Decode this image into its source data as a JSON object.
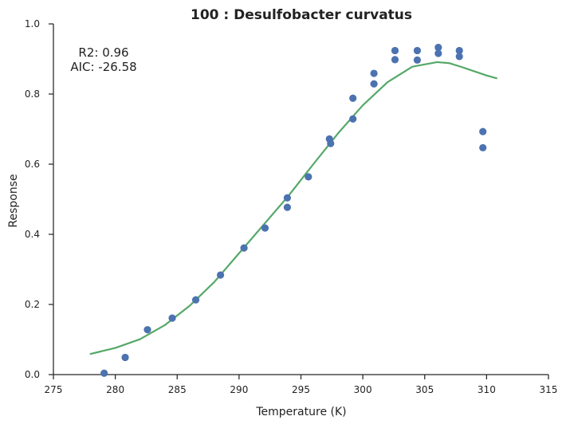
{
  "chart_data": {
    "type": "scatter",
    "title": "100 : Desulfobacter curvatus",
    "xlabel": "Temperature (K)",
    "ylabel": "Response",
    "xlim": [
      275,
      315
    ],
    "ylim": [
      0.0,
      1.0
    ],
    "x_ticks": [
      "275",
      "280",
      "285",
      "290",
      "295",
      "300",
      "305",
      "310",
      "315"
    ],
    "y_ticks": [
      "0.0",
      "0.2",
      "0.4",
      "0.6",
      "0.8",
      "1.0"
    ],
    "grid": false,
    "annotations": {
      "r2": "R2: 0.96",
      "aic": "AIC: -26.58"
    },
    "series": [
      {
        "kind": "points",
        "color": "#4c72b0",
        "points": [
          {
            "x": 279.1,
            "y": 0.004
          },
          {
            "x": 280.8,
            "y": 0.049
          },
          {
            "x": 282.6,
            "y": 0.128
          },
          {
            "x": 284.6,
            "y": 0.161
          },
          {
            "x": 286.5,
            "y": 0.213
          },
          {
            "x": 288.5,
            "y": 0.284
          },
          {
            "x": 290.4,
            "y": 0.361
          },
          {
            "x": 292.1,
            "y": 0.418
          },
          {
            "x": 293.9,
            "y": 0.477
          },
          {
            "x": 293.9,
            "y": 0.504
          },
          {
            "x": 295.6,
            "y": 0.564
          },
          {
            "x": 297.4,
            "y": 0.659
          },
          {
            "x": 297.3,
            "y": 0.672
          },
          {
            "x": 299.2,
            "y": 0.729
          },
          {
            "x": 299.2,
            "y": 0.788
          },
          {
            "x": 300.9,
            "y": 0.829
          },
          {
            "x": 300.9,
            "y": 0.859
          },
          {
            "x": 302.6,
            "y": 0.898
          },
          {
            "x": 302.6,
            "y": 0.924
          },
          {
            "x": 304.4,
            "y": 0.897
          },
          {
            "x": 304.4,
            "y": 0.924
          },
          {
            "x": 306.1,
            "y": 0.916
          },
          {
            "x": 306.1,
            "y": 0.933
          },
          {
            "x": 307.8,
            "y": 0.907
          },
          {
            "x": 307.8,
            "y": 0.924
          },
          {
            "x": 309.7,
            "y": 0.693
          },
          {
            "x": 309.7,
            "y": 0.647
          }
        ]
      },
      {
        "kind": "fit-line",
        "color": "#55a868",
        "points": [
          {
            "x": 278.0,
            "y": 0.059
          },
          {
            "x": 280.0,
            "y": 0.076
          },
          {
            "x": 282.0,
            "y": 0.101
          },
          {
            "x": 284.0,
            "y": 0.141
          },
          {
            "x": 286.0,
            "y": 0.196
          },
          {
            "x": 288.0,
            "y": 0.264
          },
          {
            "x": 290.0,
            "y": 0.346
          },
          {
            "x": 292.0,
            "y": 0.428
          },
          {
            "x": 294.0,
            "y": 0.51
          },
          {
            "x": 296.0,
            "y": 0.6
          },
          {
            "x": 298.0,
            "y": 0.688
          },
          {
            "x": 300.0,
            "y": 0.768
          },
          {
            "x": 302.0,
            "y": 0.834
          },
          {
            "x": 304.0,
            "y": 0.878
          },
          {
            "x": 306.0,
            "y": 0.891
          },
          {
            "x": 307.0,
            "y": 0.888
          },
          {
            "x": 308.0,
            "y": 0.877
          },
          {
            "x": 309.0,
            "y": 0.865
          },
          {
            "x": 310.0,
            "y": 0.853
          },
          {
            "x": 310.8,
            "y": 0.845
          }
        ]
      }
    ]
  }
}
